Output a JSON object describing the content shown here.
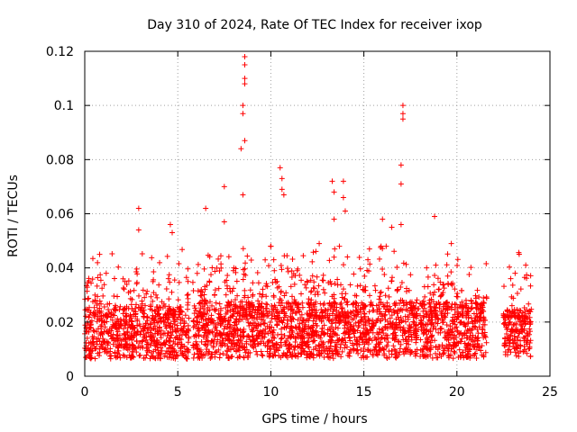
{
  "chart_data": {
    "type": "scatter",
    "title": "Day 310 of 2024, Rate Of TEC Index for receiver ixop",
    "xlabel": "GPS time / hours",
    "ylabel": "ROTI / TECUs",
    "xlim": [
      0,
      25
    ],
    "ylim": [
      0,
      0.12
    ],
    "xticks": [
      0,
      5,
      10,
      15,
      20,
      25
    ],
    "xtick_labels": [
      "0",
      "5",
      "10",
      "15",
      "20",
      "25"
    ],
    "yticks": [
      0,
      0.02,
      0.04,
      0.06,
      0.08,
      0.1,
      0.12
    ],
    "ytick_labels": [
      "0",
      "0.02",
      "0.04",
      "0.06",
      "0.08",
      "0.1",
      "0.12"
    ],
    "grid": true,
    "marker": "+",
    "color": "#ff0000",
    "segments": [
      {
        "start": 0.0,
        "end": 5.6,
        "base": 0.016,
        "spread": 0.012
      },
      {
        "start": 5.8,
        "end": 21.6,
        "base": 0.017,
        "spread": 0.013
      },
      {
        "start": 22.5,
        "end": 24.0,
        "base": 0.016,
        "spread": 0.011
      }
    ],
    "peaks": [
      {
        "x": 2.9,
        "y": 0.062
      },
      {
        "x": 2.9,
        "y": 0.054
      },
      {
        "x": 4.6,
        "y": 0.056
      },
      {
        "x": 4.7,
        "y": 0.053
      },
      {
        "x": 6.5,
        "y": 0.062
      },
      {
        "x": 7.5,
        "y": 0.07
      },
      {
        "x": 7.5,
        "y": 0.057
      },
      {
        "x": 8.4,
        "y": 0.084
      },
      {
        "x": 8.5,
        "y": 0.097
      },
      {
        "x": 8.5,
        "y": 0.1
      },
      {
        "x": 8.6,
        "y": 0.108
      },
      {
        "x": 8.6,
        "y": 0.11
      },
      {
        "x": 8.6,
        "y": 0.115
      },
      {
        "x": 8.6,
        "y": 0.118
      },
      {
        "x": 8.6,
        "y": 0.087
      },
      {
        "x": 8.5,
        "y": 0.067
      },
      {
        "x": 10.5,
        "y": 0.077
      },
      {
        "x": 10.6,
        "y": 0.073
      },
      {
        "x": 10.6,
        "y": 0.069
      },
      {
        "x": 10.7,
        "y": 0.067
      },
      {
        "x": 13.3,
        "y": 0.072
      },
      {
        "x": 13.4,
        "y": 0.068
      },
      {
        "x": 13.9,
        "y": 0.072
      },
      {
        "x": 13.9,
        "y": 0.066
      },
      {
        "x": 13.4,
        "y": 0.058
      },
      {
        "x": 14.0,
        "y": 0.061
      },
      {
        "x": 16.0,
        "y": 0.058
      },
      {
        "x": 16.5,
        "y": 0.055
      },
      {
        "x": 17.1,
        "y": 0.1
      },
      {
        "x": 17.1,
        "y": 0.097
      },
      {
        "x": 17.1,
        "y": 0.095
      },
      {
        "x": 17.0,
        "y": 0.078
      },
      {
        "x": 17.0,
        "y": 0.071
      },
      {
        "x": 17.0,
        "y": 0.056
      },
      {
        "x": 18.8,
        "y": 0.059
      },
      {
        "x": 19.7,
        "y": 0.049
      },
      {
        "x": 23.7,
        "y": 0.041
      },
      {
        "x": 0.8,
        "y": 0.045
      },
      {
        "x": 12.6,
        "y": 0.049
      },
      {
        "x": 15.3,
        "y": 0.047
      }
    ]
  }
}
